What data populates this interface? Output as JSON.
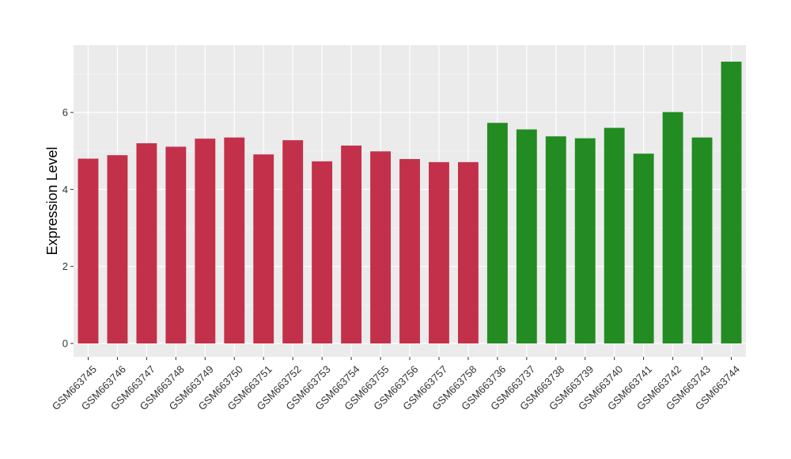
{
  "chart_data": {
    "type": "bar",
    "title": "",
    "xlabel": "",
    "ylabel": "Expression Level",
    "ylim": [
      -0.35,
      7.75
    ],
    "yticks": [
      0,
      2,
      4,
      6
    ],
    "grid": true,
    "legend": "none",
    "categories": [
      "GSM663745",
      "GSM663746",
      "GSM663747",
      "GSM663748",
      "GSM663749",
      "GSM663750",
      "GSM663751",
      "GSM663752",
      "GSM663753",
      "GSM663754",
      "GSM663755",
      "GSM663756",
      "GSM663757",
      "GSM663758",
      "GSM663736",
      "GSM663737",
      "GSM663738",
      "GSM663739",
      "GSM663740",
      "GSM663741",
      "GSM663742",
      "GSM663743",
      "GSM663744"
    ],
    "values": [
      4.8,
      4.89,
      5.2,
      5.11,
      5.32,
      5.35,
      4.91,
      5.28,
      4.73,
      5.14,
      4.99,
      4.79,
      4.71,
      4.71,
      5.73,
      5.56,
      5.38,
      5.33,
      5.6,
      4.93,
      6.01,
      5.35,
      7.32
    ],
    "colors": [
      "#C3304A",
      "#C3304A",
      "#C3304A",
      "#C3304A",
      "#C3304A",
      "#C3304A",
      "#C3304A",
      "#C3304A",
      "#C3304A",
      "#C3304A",
      "#C3304A",
      "#C3304A",
      "#C3304A",
      "#C3304A",
      "#228B22",
      "#228B22",
      "#228B22",
      "#228B22",
      "#228B22",
      "#228B22",
      "#228B22",
      "#228B22",
      "#228B22"
    ]
  }
}
